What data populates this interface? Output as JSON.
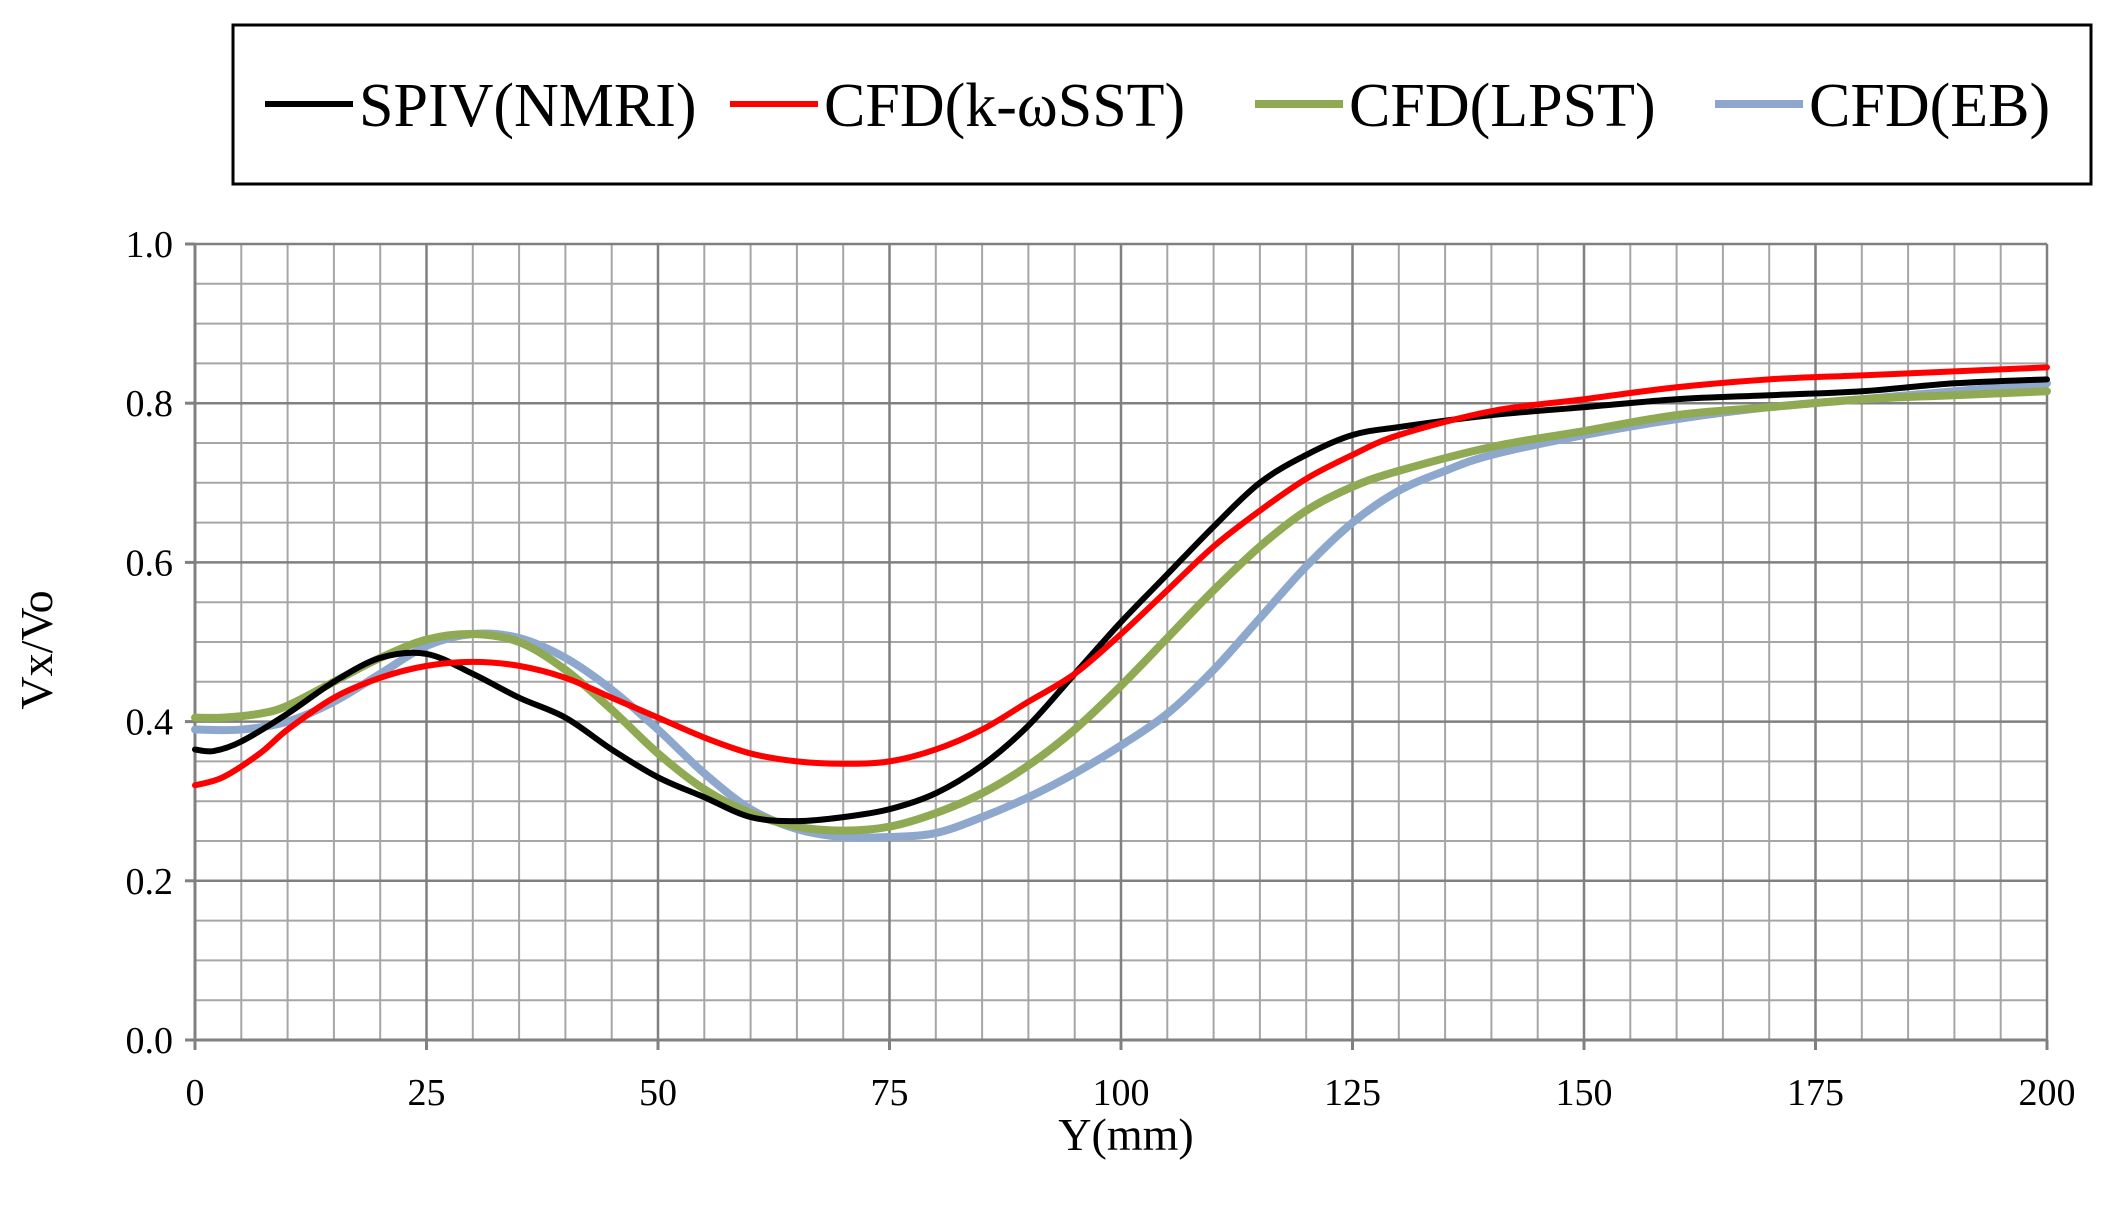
{
  "chart_data": {
    "type": "line",
    "title": "",
    "xlabel": "Y(mm)",
    "ylabel": "Vx/Vo",
    "xlim": [
      0,
      200
    ],
    "ylim": [
      0.0,
      1.0
    ],
    "x_ticks": [
      0,
      25,
      50,
      75,
      100,
      125,
      150,
      175,
      200
    ],
    "x_tick_labels": [
      "0",
      "25",
      "50",
      "75",
      "100",
      "125",
      "150",
      "175",
      "200"
    ],
    "y_ticks": [
      0.0,
      0.2,
      0.4,
      0.6,
      0.8,
      1.0
    ],
    "y_tick_labels": [
      "0.0",
      "0.2",
      "0.4",
      "0.6",
      "0.8",
      "1.0"
    ],
    "grid": true,
    "legend_position": "top",
    "series": [
      {
        "name": "SPIV(NMRI)",
        "color": "#000000",
        "x": [
          0,
          2,
          5,
          10,
          15,
          20,
          25,
          30,
          35,
          40,
          45,
          50,
          55,
          60,
          65,
          70,
          75,
          80,
          85,
          90,
          95,
          100,
          105,
          110,
          115,
          120,
          125,
          130,
          140,
          150,
          160,
          170,
          180,
          190,
          200
        ],
        "y": [
          0.365,
          0.363,
          0.375,
          0.41,
          0.45,
          0.48,
          0.485,
          0.46,
          0.43,
          0.405,
          0.365,
          0.33,
          0.305,
          0.28,
          0.275,
          0.28,
          0.29,
          0.31,
          0.345,
          0.395,
          0.46,
          0.525,
          0.585,
          0.645,
          0.7,
          0.735,
          0.76,
          0.77,
          0.785,
          0.795,
          0.805,
          0.81,
          0.815,
          0.825,
          0.83
        ]
      },
      {
        "name": "CFD(k-ωSST)",
        "color": "#ff0000",
        "x": [
          0,
          3,
          7,
          10,
          15,
          20,
          25,
          30,
          35,
          40,
          45,
          50,
          55,
          60,
          65,
          70,
          75,
          80,
          85,
          90,
          95,
          100,
          105,
          110,
          115,
          120,
          125,
          130,
          140,
          150,
          160,
          170,
          180,
          190,
          200
        ],
        "y": [
          0.32,
          0.33,
          0.36,
          0.39,
          0.43,
          0.455,
          0.47,
          0.475,
          0.47,
          0.455,
          0.43,
          0.405,
          0.38,
          0.36,
          0.35,
          0.347,
          0.35,
          0.365,
          0.39,
          0.425,
          0.46,
          0.51,
          0.565,
          0.62,
          0.665,
          0.705,
          0.735,
          0.76,
          0.79,
          0.805,
          0.82,
          0.83,
          0.835,
          0.84,
          0.845
        ]
      },
      {
        "name": "CFD(LPST)",
        "color": "#8faa52",
        "x": [
          0,
          3,
          7,
          10,
          15,
          20,
          25,
          30,
          35,
          40,
          45,
          50,
          55,
          60,
          65,
          70,
          75,
          80,
          85,
          90,
          95,
          100,
          105,
          110,
          115,
          120,
          125,
          130,
          140,
          150,
          160,
          170,
          180,
          190,
          200
        ],
        "y": [
          0.405,
          0.405,
          0.41,
          0.42,
          0.45,
          0.48,
          0.503,
          0.51,
          0.5,
          0.465,
          0.415,
          0.36,
          0.315,
          0.285,
          0.268,
          0.263,
          0.268,
          0.285,
          0.31,
          0.345,
          0.39,
          0.445,
          0.505,
          0.565,
          0.62,
          0.665,
          0.695,
          0.715,
          0.745,
          0.765,
          0.785,
          0.795,
          0.805,
          0.81,
          0.815
        ]
      },
      {
        "name": "CFD(EB)",
        "color": "#8ea7cd",
        "x": [
          0,
          5,
          10,
          15,
          20,
          25,
          30,
          35,
          40,
          45,
          50,
          55,
          60,
          65,
          70,
          75,
          80,
          85,
          90,
          95,
          100,
          105,
          110,
          115,
          120,
          125,
          130,
          135,
          140,
          150,
          160,
          170,
          180,
          190,
          200
        ],
        "y": [
          0.39,
          0.39,
          0.4,
          0.425,
          0.46,
          0.495,
          0.51,
          0.505,
          0.48,
          0.44,
          0.39,
          0.335,
          0.29,
          0.265,
          0.255,
          0.255,
          0.26,
          0.28,
          0.305,
          0.335,
          0.37,
          0.41,
          0.465,
          0.53,
          0.595,
          0.65,
          0.69,
          0.715,
          0.735,
          0.76,
          0.78,
          0.795,
          0.805,
          0.815,
          0.825
        ]
      }
    ]
  }
}
